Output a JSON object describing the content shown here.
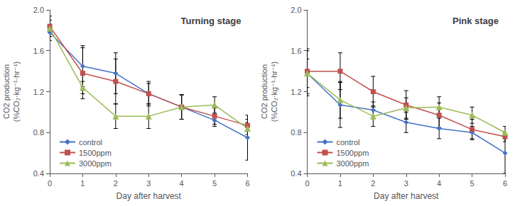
{
  "chart_data": [
    {
      "type": "line",
      "title": "Turning stage",
      "xlabel": "Day after harvest",
      "ylabel": "CO2 production\n(%CO₂·kg⁻¹·hr⁻¹)",
      "x": [
        0,
        1,
        2,
        3,
        4,
        5,
        6
      ],
      "series": [
        {
          "name": "control",
          "color": "#4472C4",
          "marker": "diamond",
          "values": [
            1.78,
            1.45,
            1.38,
            1.18,
            1.05,
            0.92,
            0.75
          ],
          "yerr": [
            0.08,
            0.2,
            0.2,
            0.1,
            0.12,
            0.06,
            0.22
          ]
        },
        {
          "name": "1500ppm",
          "color": "#C0504D",
          "marker": "square",
          "values": [
            1.84,
            1.38,
            1.3,
            1.18,
            1.05,
            0.96,
            0.87
          ],
          "yerr": [
            0.1,
            0.25,
            0.22,
            0.12,
            0.12,
            0.08,
            0.06
          ]
        },
        {
          "name": "3000ppm",
          "color": "#9BBB59",
          "marker": "triangle",
          "values": [
            1.82,
            1.24,
            0.96,
            0.96,
            1.05,
            1.07,
            0.84
          ],
          "yerr": [
            0.08,
            0.06,
            0.12,
            0.12,
            0.12,
            0.08,
            0.06
          ]
        }
      ],
      "xlim": [
        0,
        6
      ],
      "xticks": [
        0,
        1,
        2,
        3,
        4,
        5,
        6
      ],
      "ylim": [
        0.4,
        2.0
      ],
      "yticks": [
        0.4,
        0.8,
        1.2,
        1.6,
        {
          "value": 2.0,
          "label": "2.0"
        }
      ],
      "grid": false,
      "legend": "lower left"
    },
    {
      "type": "line",
      "title": "Pink stage",
      "xlabel": "Day after harvest",
      "ylabel": "CO2 production\n(%CO₂·kg⁻¹·hr⁻¹)",
      "x": [
        0,
        1,
        2,
        3,
        4,
        5,
        6
      ],
      "series": [
        {
          "name": "control",
          "color": "#4472C4",
          "marker": "diamond",
          "values": [
            1.38,
            1.07,
            1.02,
            0.9,
            0.84,
            0.8,
            0.6
          ],
          "yerr": [
            0.22,
            0.22,
            0.08,
            0.1,
            0.1,
            0.06,
            0.2
          ]
        },
        {
          "name": "1500ppm",
          "color": "#C0504D",
          "marker": "square",
          "values": [
            1.4,
            1.4,
            1.2,
            1.07,
            0.97,
            0.83,
            0.76
          ],
          "yerr": [
            0.22,
            0.18,
            0.15,
            0.14,
            0.12,
            0.1,
            0.05
          ]
        },
        {
          "name": "3000ppm",
          "color": "#9BBB59",
          "marker": "triangle",
          "values": [
            1.38,
            1.12,
            0.96,
            1.04,
            1.05,
            0.97,
            0.8
          ],
          "yerr": [
            0.14,
            0.18,
            0.1,
            0.1,
            0.1,
            0.08,
            0.06
          ]
        }
      ],
      "xlim": [
        0,
        6
      ],
      "xticks": [
        0,
        1,
        2,
        3,
        4,
        5,
        6
      ],
      "ylim": [
        0.4,
        2.0
      ],
      "yticks": [
        0.4,
        0.8,
        1.2,
        1.6,
        {
          "value": 2.0,
          "label": "2.0"
        }
      ],
      "grid": false,
      "legend": "lower left"
    }
  ]
}
